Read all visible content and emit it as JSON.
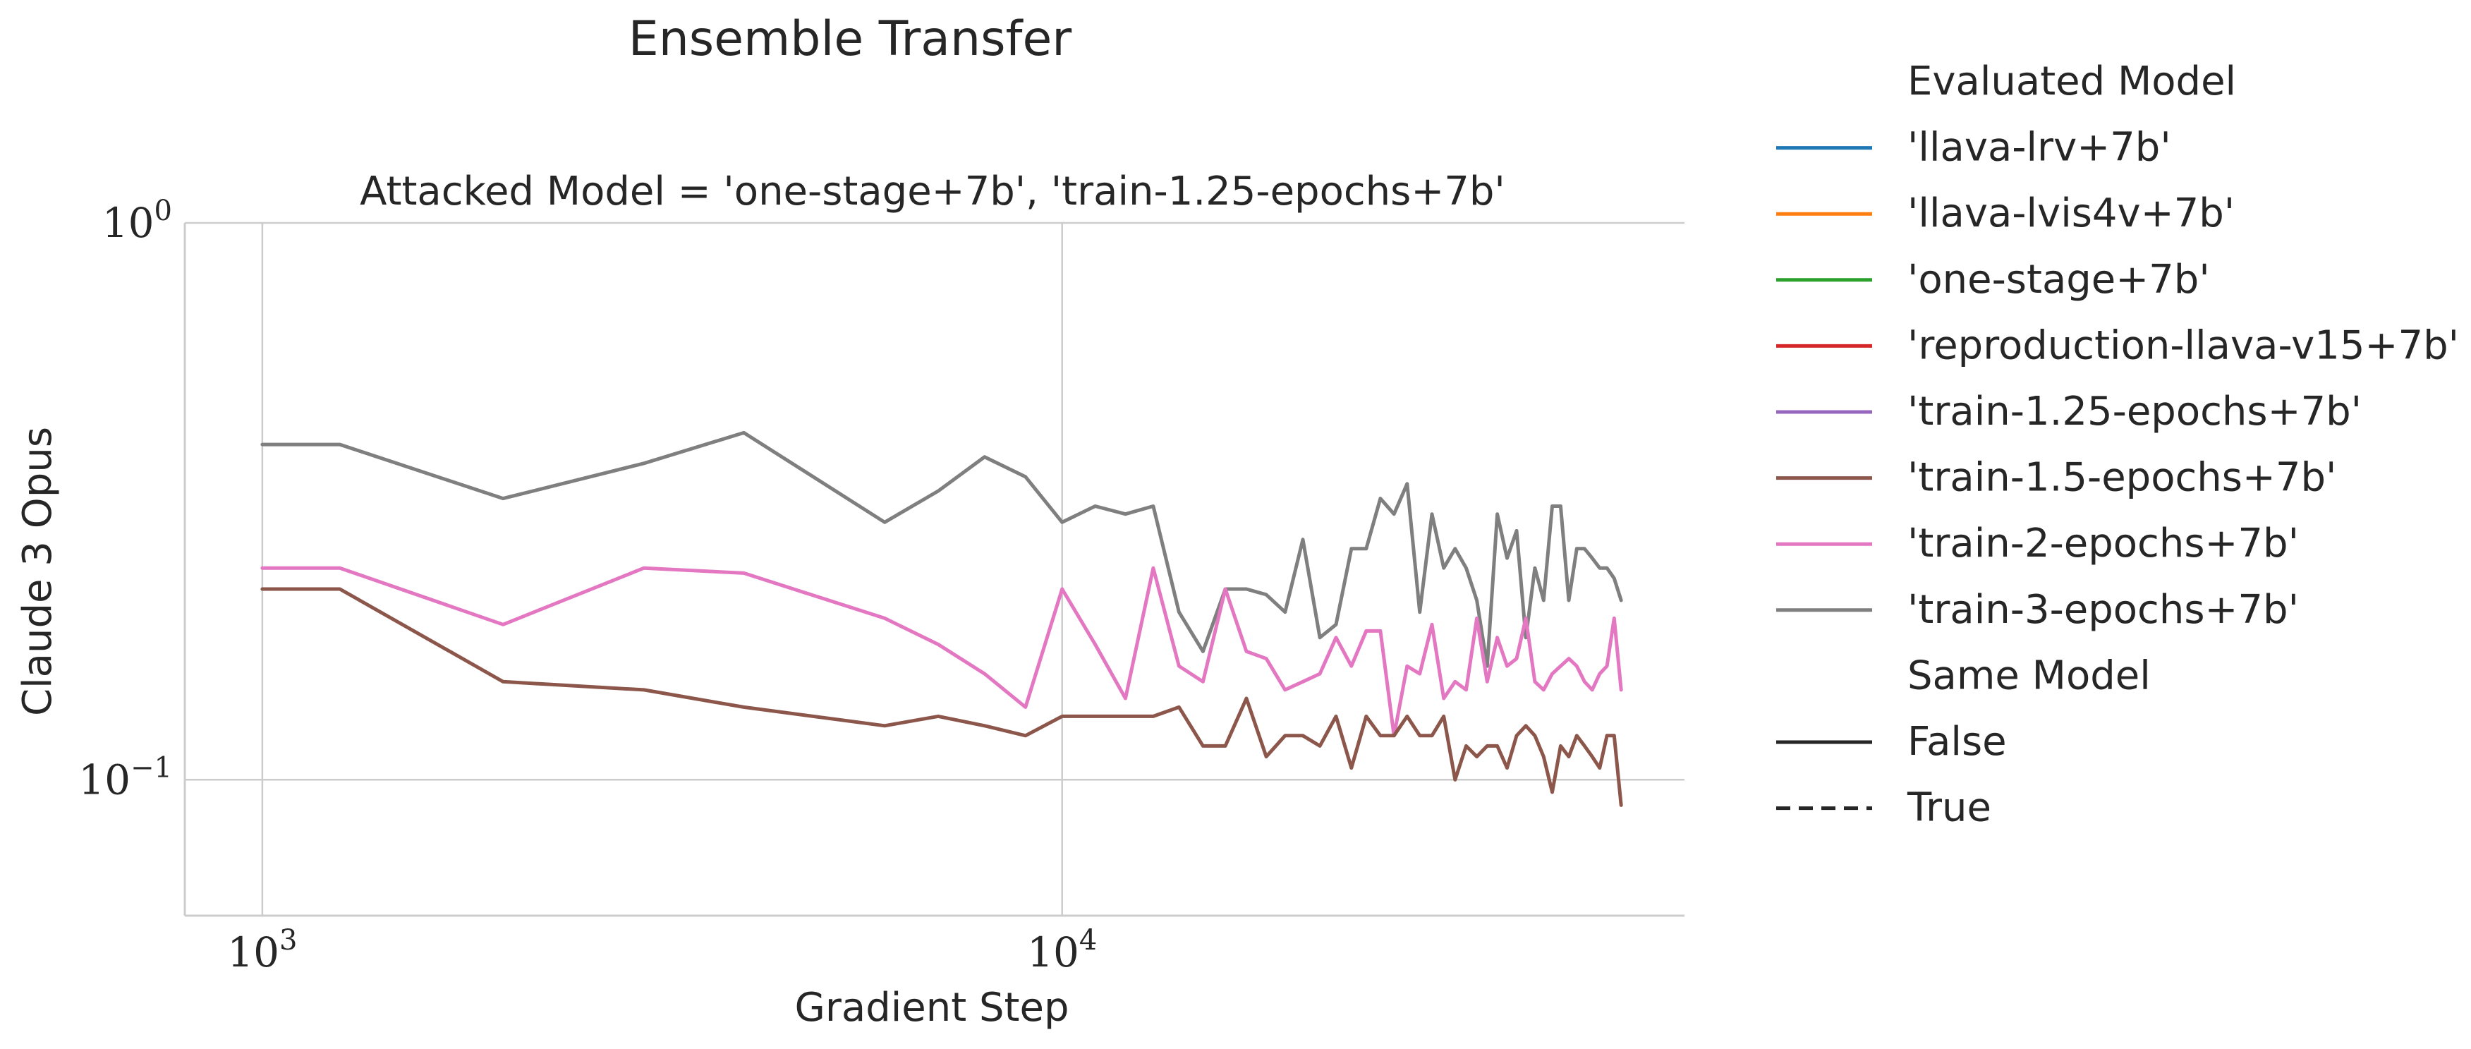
{
  "chart_data": {
    "type": "line",
    "title": "Ensemble Transfer",
    "subtitle": "Attacked Model = 'one-stage+7b', 'train-1.25-epochs+7b'",
    "xlabel": "Gradient Step",
    "ylabel": "Claude 3 Opus",
    "xscale": "log",
    "yscale": "log",
    "xlim": [
      800,
      60000
    ],
    "ylim": [
      0.057,
      1.0
    ],
    "x_ticks": [
      {
        "value": 1000,
        "base": "10",
        "exp": "3"
      },
      {
        "value": 10000,
        "base": "10",
        "exp": "4"
      }
    ],
    "y_ticks": [
      {
        "value": 0.1,
        "base": "10",
        "exp": "−1"
      },
      {
        "value": 1,
        "base": "10",
        "exp": "0"
      }
    ],
    "grid": true,
    "legend_placement": "outside-right",
    "legend": {
      "title": "Evaluated Model",
      "entries": [
        {
          "label": "'llava-lrv+7b'",
          "color": "#1f77b4"
        },
        {
          "label": "'llava-lvis4v+7b'",
          "color": "#ff7f0e"
        },
        {
          "label": "'one-stage+7b'",
          "color": "#2ca02c"
        },
        {
          "label": "'reproduction-llava-v15+7b'",
          "color": "#d62728"
        },
        {
          "label": "'train-1.25-epochs+7b'",
          "color": "#9467bd"
        },
        {
          "label": "'train-1.5-epochs+7b'",
          "color": "#8c564b"
        },
        {
          "label": "'train-2-epochs+7b'",
          "color": "#e377c2"
        },
        {
          "label": "'train-3-epochs+7b'",
          "color": "#7f7f7f"
        }
      ],
      "style_title": "Same Model",
      "style_entries": [
        {
          "label": "False",
          "dash": "solid"
        },
        {
          "label": "True",
          "dash": "dashed"
        }
      ]
    },
    "series": [
      {
        "name": "'train-3-epochs+7b'",
        "color": "#7f7f7f",
        "same_model": "False",
        "x": [
          1000,
          1250,
          2000,
          3000,
          4000,
          6000,
          7000,
          8000,
          9000,
          10000,
          11000,
          12000,
          13000,
          14000,
          15000,
          16000,
          17000,
          18000,
          19000,
          20000,
          21000,
          22000,
          23000,
          24000,
          25000,
          26000,
          27000,
          28000,
          29000,
          30000,
          31000,
          32000,
          33000,
          34000,
          35000,
          36000,
          37000,
          38000,
          39000,
          40000,
          41000,
          42000,
          43000,
          44000,
          45000,
          46000,
          47000,
          48000,
          49000,
          50000
        ],
        "y": [
          0.4,
          0.4,
          0.32,
          0.37,
          0.42,
          0.29,
          0.33,
          0.38,
          0.35,
          0.29,
          0.31,
          0.3,
          0.31,
          0.2,
          0.17,
          0.22,
          0.22,
          0.215,
          0.2,
          0.27,
          0.18,
          0.19,
          0.26,
          0.26,
          0.32,
          0.3,
          0.34,
          0.2,
          0.3,
          0.24,
          0.26,
          0.24,
          0.21,
          0.16,
          0.3,
          0.25,
          0.28,
          0.18,
          0.24,
          0.21,
          0.31,
          0.31,
          0.21,
          0.26,
          0.26,
          0.25,
          0.24,
          0.24,
          0.23,
          0.21
        ]
      },
      {
        "name": "'train-2-epochs+7b'",
        "color": "#e377c2",
        "same_model": "False",
        "x": [
          1000,
          1250,
          2000,
          3000,
          4000,
          6000,
          7000,
          8000,
          9000,
          10000,
          11000,
          12000,
          13000,
          14000,
          15000,
          16000,
          17000,
          18000,
          19000,
          20000,
          21000,
          22000,
          23000,
          24000,
          25000,
          26000,
          27000,
          28000,
          29000,
          30000,
          31000,
          32000,
          33000,
          34000,
          35000,
          36000,
          37000,
          38000,
          39000,
          40000,
          41000,
          42000,
          43000,
          44000,
          45000,
          46000,
          47000,
          48000,
          49000,
          50000
        ],
        "y": [
          0.24,
          0.24,
          0.19,
          0.24,
          0.235,
          0.195,
          0.175,
          0.155,
          0.135,
          0.22,
          0.175,
          0.14,
          0.24,
          0.16,
          0.15,
          0.22,
          0.17,
          0.165,
          0.145,
          0.15,
          0.155,
          0.18,
          0.16,
          0.185,
          0.185,
          0.12,
          0.16,
          0.155,
          0.19,
          0.14,
          0.15,
          0.145,
          0.195,
          0.15,
          0.18,
          0.16,
          0.165,
          0.195,
          0.15,
          0.145,
          0.155,
          0.16,
          0.165,
          0.16,
          0.15,
          0.145,
          0.155,
          0.16,
          0.195,
          0.145
        ]
      },
      {
        "name": "'train-1.5-epochs+7b'",
        "color": "#8c564b",
        "same_model": "False",
        "x": [
          1000,
          1250,
          2000,
          3000,
          4000,
          6000,
          7000,
          8000,
          9000,
          10000,
          11000,
          12000,
          13000,
          14000,
          15000,
          16000,
          17000,
          18000,
          19000,
          20000,
          21000,
          22000,
          23000,
          24000,
          25000,
          26000,
          27000,
          28000,
          29000,
          30000,
          31000,
          32000,
          33000,
          34000,
          35000,
          36000,
          37000,
          38000,
          39000,
          40000,
          41000,
          42000,
          43000,
          44000,
          45000,
          46000,
          47000,
          48000,
          49000,
          50000
        ],
        "y": [
          0.22,
          0.22,
          0.15,
          0.145,
          0.135,
          0.125,
          0.13,
          0.125,
          0.12,
          0.13,
          0.13,
          0.13,
          0.13,
          0.135,
          0.115,
          0.115,
          0.14,
          0.11,
          0.12,
          0.12,
          0.115,
          0.13,
          0.105,
          0.13,
          0.12,
          0.12,
          0.13,
          0.12,
          0.12,
          0.13,
          0.1,
          0.115,
          0.11,
          0.115,
          0.115,
          0.105,
          0.12,
          0.125,
          0.12,
          0.11,
          0.095,
          0.115,
          0.11,
          0.12,
          0.115,
          0.11,
          0.105,
          0.12,
          0.12,
          0.09
        ]
      }
    ]
  }
}
